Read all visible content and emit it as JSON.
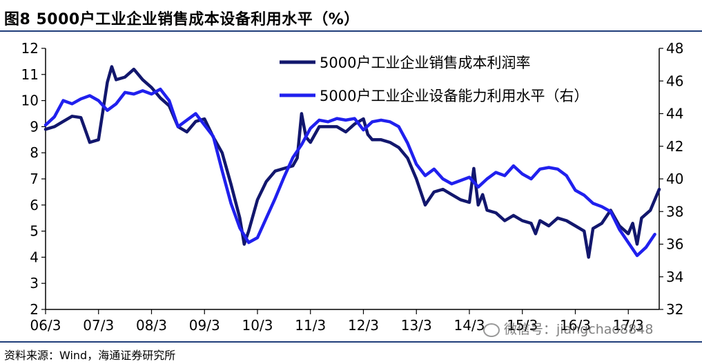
{
  "header": {
    "title": "图8   5000户工业企业销售成本设备利用水平（%）"
  },
  "footer": {
    "source": "资料来源：Wind，海通证券研究所"
  },
  "watermark": {
    "text": "微信号：jiangchao8848",
    "icon": "wechat-icon"
  },
  "colors": {
    "profit": "#12176d",
    "utilization": "#2020ee",
    "axis": "#000000"
  },
  "chart_data": {
    "type": "line",
    "x_tick_labels": [
      "06/3",
      "07/3",
      "08/3",
      "09/3",
      "10/3",
      "11/3",
      "12/3",
      "13/3",
      "14/3",
      "15/3",
      "16/3",
      "17/3"
    ],
    "x_range": [
      0,
      139
    ],
    "ylim_left": [
      2,
      12
    ],
    "ylim_right": [
      32,
      48
    ],
    "yticks_left": [
      2,
      3,
      4,
      5,
      6,
      7,
      8,
      9,
      10,
      11,
      12
    ],
    "yticks_right": [
      32,
      34,
      36,
      38,
      40,
      42,
      44,
      46,
      48
    ],
    "legend_position": "top-right",
    "series": [
      {
        "name": "5000户工业企业销售成本利润率",
        "axis": "left",
        "color": "#12176d",
        "points": [
          [
            0,
            8.9
          ],
          [
            2,
            9.0
          ],
          [
            4,
            9.2
          ],
          [
            6,
            9.4
          ],
          [
            8,
            9.35
          ],
          [
            10,
            8.4
          ],
          [
            12,
            8.5
          ],
          [
            13,
            9.6
          ],
          [
            14,
            10.7
          ],
          [
            15,
            11.3
          ],
          [
            16,
            10.8
          ],
          [
            18,
            10.9
          ],
          [
            20,
            11.2
          ],
          [
            22,
            10.8
          ],
          [
            24,
            10.5
          ],
          [
            26,
            10.1
          ],
          [
            28,
            9.8
          ],
          [
            30,
            9.0
          ],
          [
            32,
            8.8
          ],
          [
            34,
            9.2
          ],
          [
            36,
            9.3
          ],
          [
            38,
            8.6
          ],
          [
            40,
            8.0
          ],
          [
            42,
            6.8
          ],
          [
            44,
            5.5
          ],
          [
            45,
            4.5
          ],
          [
            46,
            5.0
          ],
          [
            48,
            6.2
          ],
          [
            50,
            6.9
          ],
          [
            52,
            7.3
          ],
          [
            54,
            7.4
          ],
          [
            56,
            7.5
          ],
          [
            57,
            7.8
          ],
          [
            58,
            9.5
          ],
          [
            59,
            8.6
          ],
          [
            60,
            8.4
          ],
          [
            62,
            9.0
          ],
          [
            64,
            9.0
          ],
          [
            66,
            9.0
          ],
          [
            68,
            8.8
          ],
          [
            70,
            9.1
          ],
          [
            72,
            9.3
          ],
          [
            73,
            8.7
          ],
          [
            74,
            8.5
          ],
          [
            76,
            8.5
          ],
          [
            78,
            8.4
          ],
          [
            80,
            8.2
          ],
          [
            82,
            7.8
          ],
          [
            84,
            7.0
          ],
          [
            86,
            6.0
          ],
          [
            88,
            6.5
          ],
          [
            90,
            6.6
          ],
          [
            92,
            6.4
          ],
          [
            94,
            6.2
          ],
          [
            96,
            6.1
          ],
          [
            97,
            7.4
          ],
          [
            98,
            6.0
          ],
          [
            99,
            6.4
          ],
          [
            100,
            5.8
          ],
          [
            102,
            5.7
          ],
          [
            104,
            5.4
          ],
          [
            106,
            5.6
          ],
          [
            108,
            5.4
          ],
          [
            110,
            5.3
          ],
          [
            111,
            4.9
          ],
          [
            112,
            5.4
          ],
          [
            114,
            5.2
          ],
          [
            116,
            5.5
          ],
          [
            118,
            5.4
          ],
          [
            120,
            5.2
          ],
          [
            122,
            5.0
          ],
          [
            123,
            4.0
          ],
          [
            124,
            5.1
          ],
          [
            126,
            5.3
          ],
          [
            128,
            5.8
          ],
          [
            130,
            5.2
          ],
          [
            132,
            4.9
          ],
          [
            133,
            5.3
          ],
          [
            134,
            4.5
          ],
          [
            135,
            5.5
          ],
          [
            137,
            5.8
          ],
          [
            139,
            6.6
          ]
        ]
      },
      {
        "name": "5000户工业企业设备能力利用水平（右）",
        "axis": "right",
        "color": "#2020ee",
        "points": [
          [
            0,
            43.3
          ],
          [
            2,
            43.8
          ],
          [
            4,
            44.8
          ],
          [
            6,
            44.6
          ],
          [
            8,
            44.9
          ],
          [
            10,
            45.1
          ],
          [
            12,
            44.8
          ],
          [
            14,
            44.2
          ],
          [
            16,
            44.6
          ],
          [
            18,
            45.3
          ],
          [
            20,
            45.2
          ],
          [
            22,
            45.4
          ],
          [
            24,
            45.2
          ],
          [
            26,
            45.5
          ],
          [
            28,
            44.8
          ],
          [
            30,
            43.2
          ],
          [
            32,
            43.6
          ],
          [
            34,
            44.0
          ],
          [
            36,
            43.3
          ],
          [
            38,
            42.6
          ],
          [
            40,
            40.5
          ],
          [
            42,
            38.5
          ],
          [
            44,
            37.0
          ],
          [
            46,
            36.1
          ],
          [
            48,
            36.4
          ],
          [
            50,
            37.6
          ],
          [
            52,
            38.8
          ],
          [
            54,
            40.1
          ],
          [
            56,
            41.3
          ],
          [
            58,
            42.1
          ],
          [
            60,
            43.1
          ],
          [
            62,
            43.6
          ],
          [
            64,
            43.5
          ],
          [
            66,
            43.7
          ],
          [
            68,
            43.6
          ],
          [
            70,
            43.7
          ],
          [
            72,
            43.0
          ],
          [
            74,
            43.5
          ],
          [
            76,
            43.6
          ],
          [
            78,
            43.5
          ],
          [
            80,
            43.2
          ],
          [
            82,
            42.2
          ],
          [
            84,
            40.9
          ],
          [
            86,
            40.2
          ],
          [
            88,
            40.6
          ],
          [
            90,
            40.0
          ],
          [
            92,
            39.7
          ],
          [
            94,
            39.9
          ],
          [
            96,
            40.1
          ],
          [
            98,
            39.5
          ],
          [
            100,
            40.0
          ],
          [
            102,
            40.4
          ],
          [
            104,
            40.2
          ],
          [
            106,
            40.8
          ],
          [
            108,
            40.3
          ],
          [
            110,
            40.0
          ],
          [
            112,
            40.6
          ],
          [
            114,
            40.7
          ],
          [
            116,
            40.6
          ],
          [
            118,
            40.2
          ],
          [
            120,
            39.3
          ],
          [
            122,
            39.0
          ],
          [
            124,
            38.5
          ],
          [
            126,
            38.3
          ],
          [
            128,
            38.0
          ],
          [
            130,
            36.9
          ],
          [
            132,
            36.1
          ],
          [
            134,
            35.3
          ],
          [
            136,
            35.8
          ],
          [
            138,
            36.6
          ]
        ]
      }
    ]
  }
}
